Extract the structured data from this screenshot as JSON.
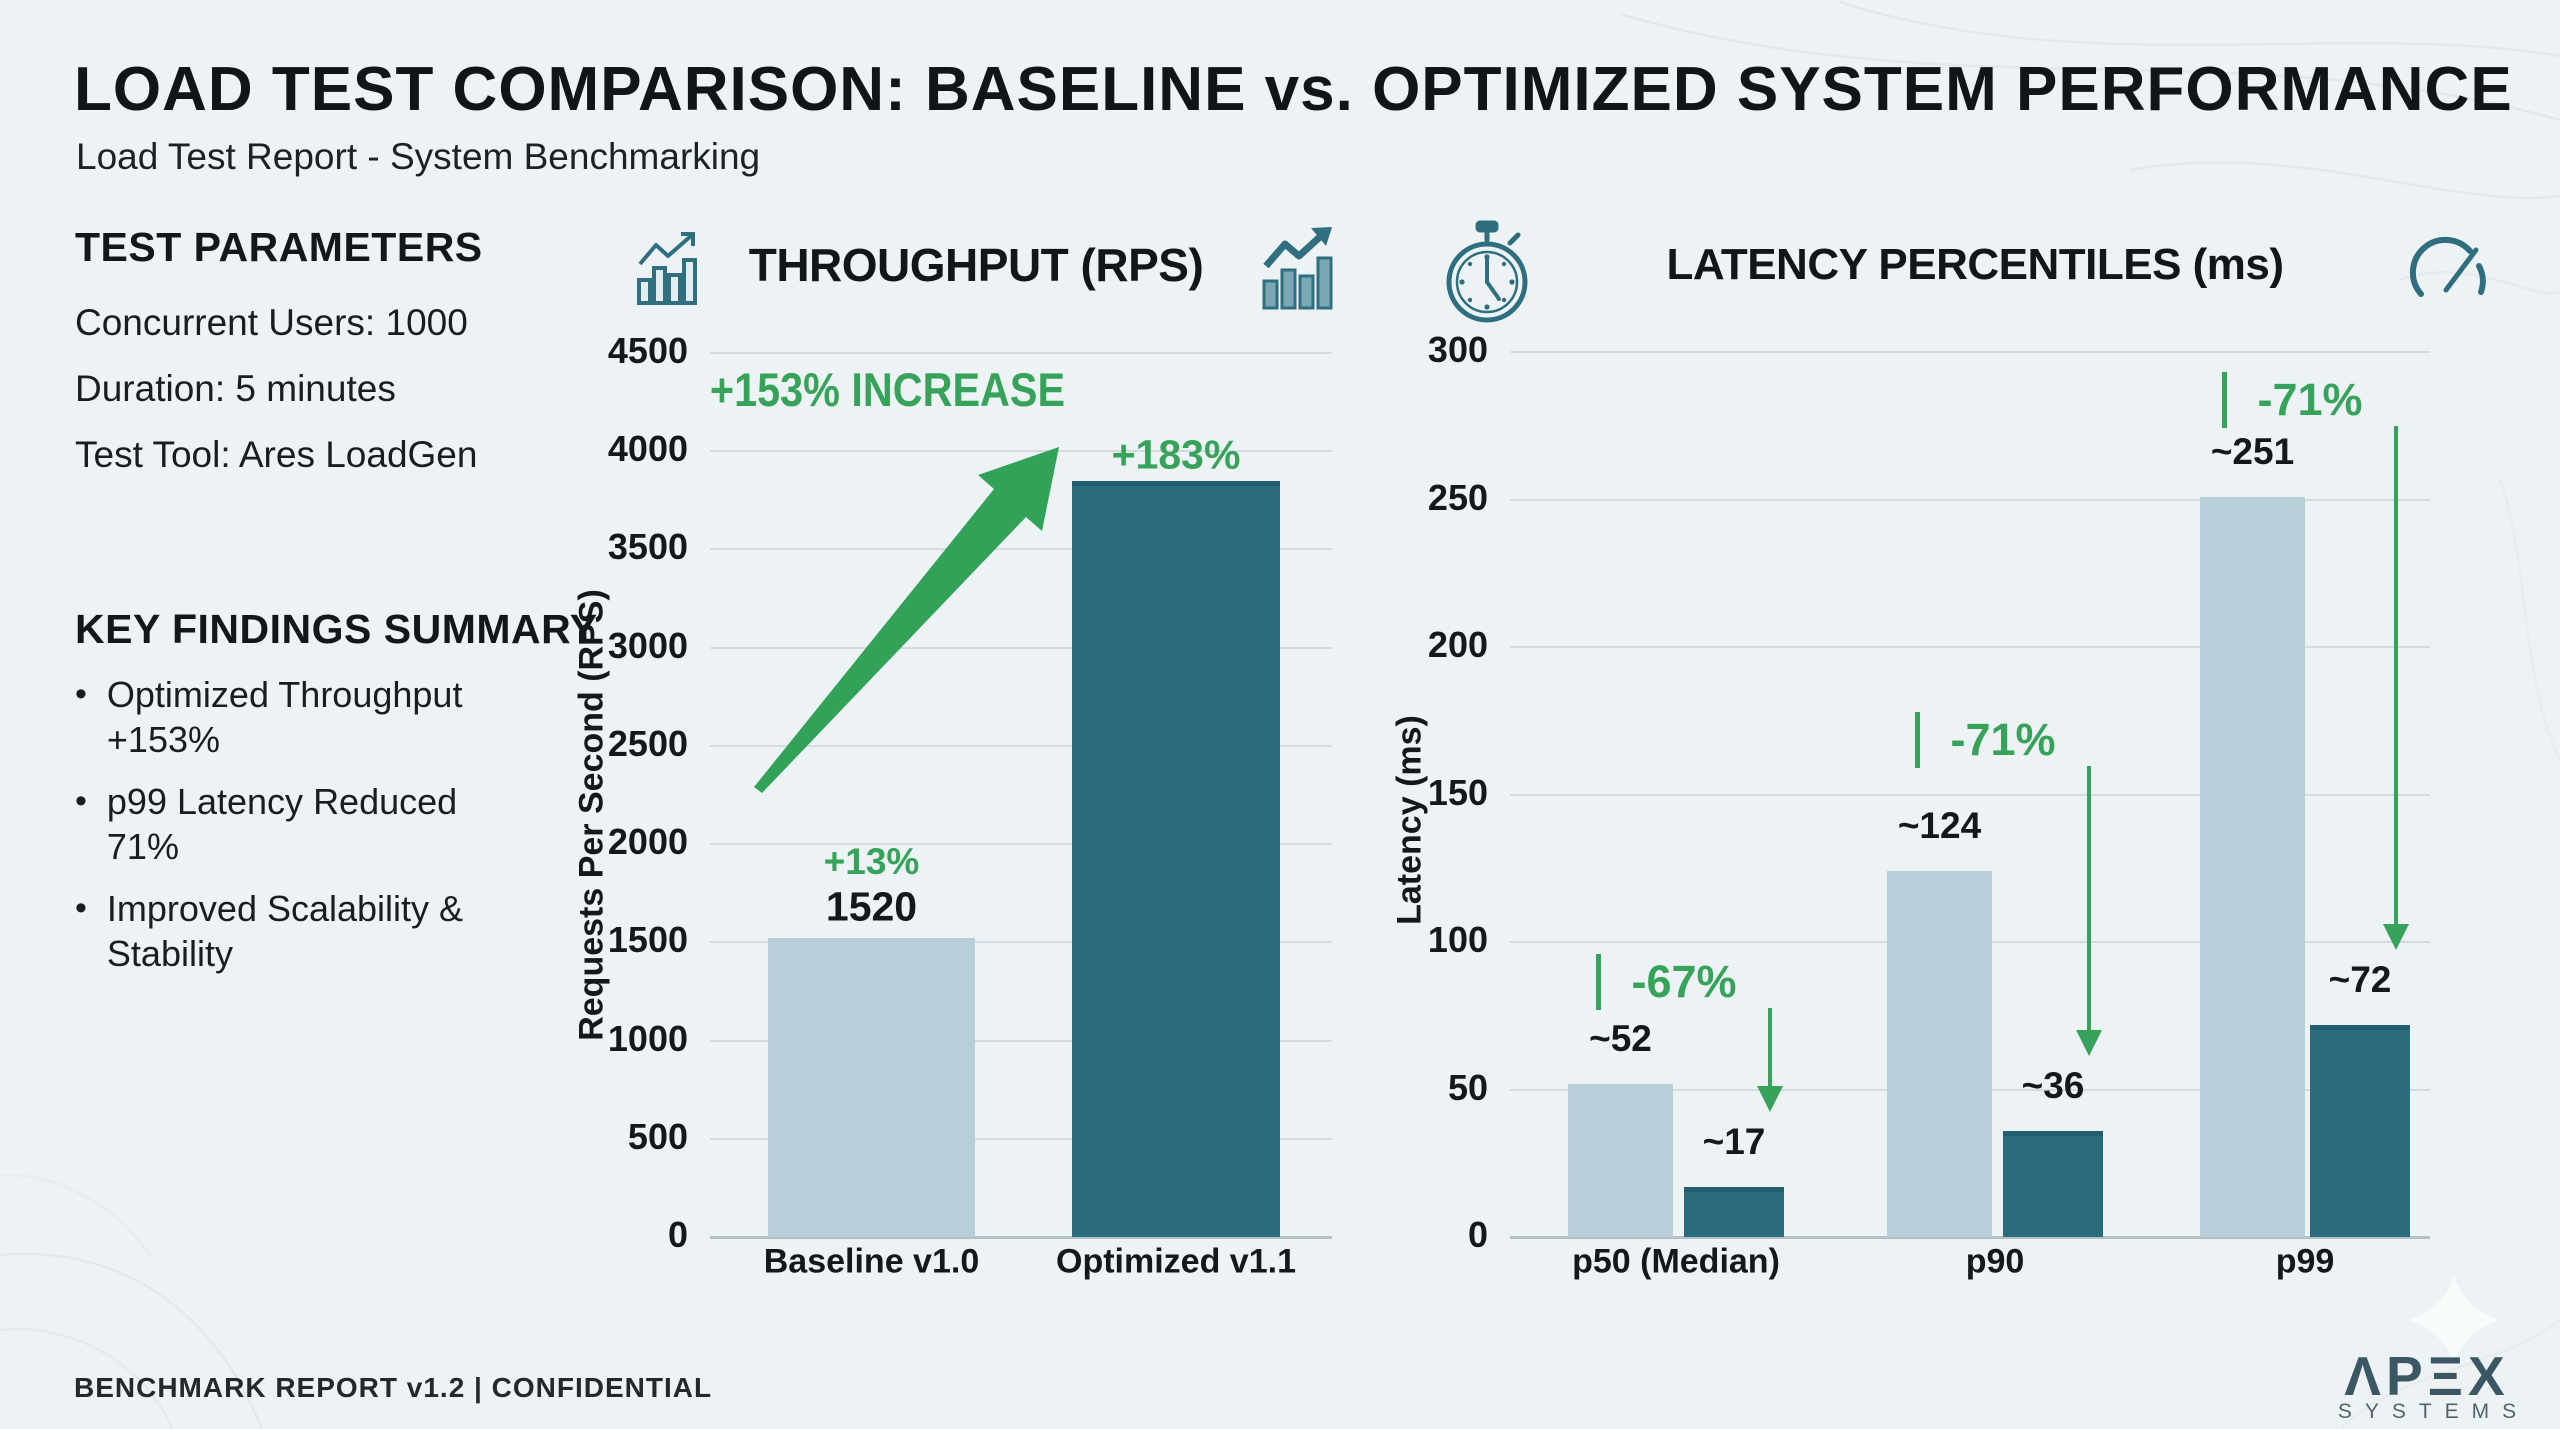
{
  "page": {
    "title": "LOAD TEST COMPARISON: BASELINE vs. OPTIMIZED SYSTEM PERFORMANCE",
    "subtitle": "Load Test Report - System Benchmarking",
    "footer": "BENCHMARK REPORT v1.2  |  CONFIDENTIAL"
  },
  "left_panel": {
    "test_parameters": {
      "heading": "TEST PARAMETERS",
      "items": [
        "Concurrent Users: 1000",
        "Duration: 5 minutes",
        "Test Tool: Ares LoadGen"
      ]
    },
    "key_findings": {
      "heading": "KEY FINDINGS SUMMARY",
      "items": [
        "Optimized Throughput +153%",
        "p99 Latency Reduced 71%",
        "Improved Scalability & Stability"
      ]
    }
  },
  "ui": {
    "bullet": "•"
  },
  "colors": {
    "background": "#edf2f4",
    "baseline_bar": "#b8cfd9",
    "optimized_bar": "#2a6c7e",
    "optimized_bar_cap": "#1f5f70",
    "accent_green": "#37a35a",
    "text": "#15181b",
    "gridline": "#d4dbde",
    "axis_line": "#b6bfc5",
    "icon_teal": "#2f6f80",
    "logo_dark": "#3a5763"
  },
  "chart_data": [
    {
      "type": "bar",
      "title": "THROUGHPUT (RPS)",
      "ylabel": "Requests Per Second (RPS)",
      "ylim": [
        0,
        4500
      ],
      "ytick_step": 500,
      "grid": true,
      "categories": [
        "Baseline v1.0",
        "Optimized v1.1"
      ],
      "values": [
        1520,
        3850
      ],
      "value_labels": [
        "1520",
        ""
      ],
      "delta_labels": [
        "+13%",
        "+183%"
      ],
      "annotation": "+153% INCREASE"
    },
    {
      "type": "bar",
      "title": "LATENCY PERCENTILES (ms)",
      "ylabel": "Latency (ms)",
      "ylim": [
        0,
        300
      ],
      "ytick_step": 50,
      "grid": true,
      "categories": [
        "p50 (Median)",
        "p90",
        "p99"
      ],
      "series": [
        {
          "name": "Baseline v1.0",
          "values": [
            52,
            124,
            251
          ],
          "labels": [
            "~52",
            "~124",
            "~251"
          ]
        },
        {
          "name": "Optimized v1.1",
          "values": [
            17,
            36,
            72
          ],
          "labels": [
            "~17",
            "~36",
            "~72"
          ]
        }
      ],
      "reduction_labels": [
        "-67%",
        "-71%",
        "-71%"
      ]
    }
  ],
  "logo": {
    "brand": "APEX",
    "tagline": "SYSTEMS"
  }
}
